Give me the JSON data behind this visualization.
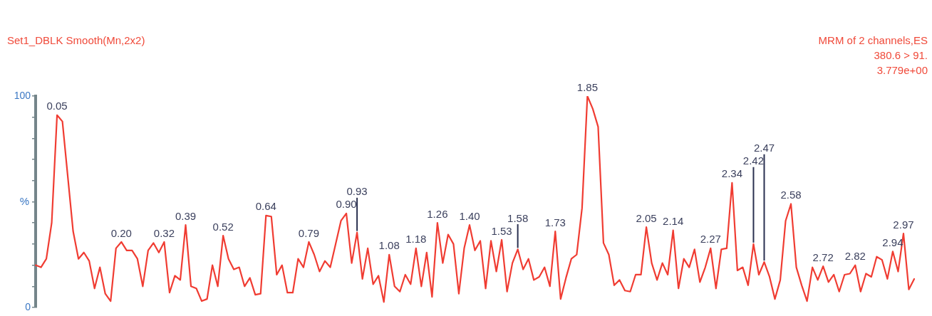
{
  "chart_data": {
    "type": "line",
    "title": "Set1_DBLK Smooth(Mn,2x2)",
    "ylabel": "%",
    "annotations": [
      "MRM of 2 channels,ES",
      "380.6 > 91.",
      "3.779e+00",
      {
        "text": "0.05",
        "y": 91
      },
      {
        "text": "0.20",
        "y": 31
      },
      {
        "text": "0.32",
        "y": 31
      },
      {
        "text": "0.39",
        "y": 39
      },
      {
        "text": "0.52",
        "y": 34
      },
      {
        "text": "0.64",
        "y": 43.5
      },
      {
        "text": "0.79",
        "y": 31
      },
      {
        "text": "0.90",
        "y": 44.5
      },
      {
        "text": "0.93",
        "y": 35.5
      },
      {
        "text": "1.08",
        "y": 25
      },
      {
        "text": "1.18",
        "y": 28
      },
      {
        "text": "1.26",
        "y": 40
      },
      {
        "text": "1.40",
        "y": 39
      },
      {
        "text": "1.53",
        "y": 32
      },
      {
        "text": "1.58",
        "y": 27.5
      },
      {
        "text": "1.73",
        "y": 36
      },
      {
        "text": "1.85",
        "y": 100
      },
      {
        "text": "2.05",
        "y": 38
      },
      {
        "text": "2.14",
        "y": 36.5
      },
      {
        "text": "2.27",
        "y": 28
      },
      {
        "text": "2.34",
        "y": 59
      },
      {
        "text": "2.42",
        "y": 30
      },
      {
        "text": "2.47",
        "y": 21.5
      },
      {
        "text": "2.58",
        "y": 49
      },
      {
        "text": "2.72",
        "y": 19.5
      },
      {
        "text": "2.82",
        "y": 20
      },
      {
        "text": "2.94",
        "y": 26.5
      },
      {
        "text": "2.97",
        "y": 35
      }
    ],
    "categories": [
      null,
      null,
      null,
      null,
      null,
      null,
      null,
      null,
      null,
      null,
      null,
      null,
      null,
      null,
      null,
      null,
      null,
      null,
      null,
      null,
      null,
      null,
      null,
      null,
      null,
      null,
      null,
      null,
      null,
      null,
      null,
      null,
      null,
      null,
      null,
      null,
      null,
      null,
      null,
      null,
      null,
      null,
      null,
      null,
      null,
      null,
      null,
      null,
      null,
      null,
      null,
      null,
      null,
      null,
      null,
      null,
      null,
      null,
      null,
      null,
      null,
      null,
      null,
      null,
      null,
      null,
      null,
      null,
      null,
      null,
      null,
      null,
      null,
      null,
      null,
      null,
      null,
      null,
      null,
      null,
      null,
      null,
      null,
      null,
      null,
      null,
      null,
      null,
      null,
      null,
      null,
      null,
      null,
      null,
      null,
      null,
      null,
      null,
      null,
      null,
      null,
      null,
      null,
      null,
      null,
      null,
      null,
      null,
      null,
      null,
      null,
      null,
      null,
      null,
      null,
      null,
      null,
      null,
      null,
      null,
      null,
      null,
      null,
      null,
      null,
      null,
      null,
      null,
      null,
      null,
      null,
      null,
      null,
      null,
      null,
      null,
      null,
      null,
      null,
      null,
      null,
      null,
      null,
      null,
      null,
      null,
      null,
      null,
      null,
      null,
      null,
      null,
      null,
      null,
      null,
      null,
      null,
      null,
      null,
      null,
      null,
      null,
      null,
      null,
      null
    ],
    "ylim": [
      0,
      100
    ],
    "yticks": [
      0,
      {
        "value": 10,
        "label": null
      },
      {
        "value": 20,
        "label": null
      },
      {
        "value": 30,
        "label": null
      },
      {
        "value": 40,
        "label": null
      },
      {
        "value": 50,
        "label": null
      },
      {
        "value": 60,
        "label": null
      },
      {
        "value": 70,
        "label": null
      },
      {
        "value": 80,
        "label": null
      },
      {
        "value": 90,
        "label": null
      },
      100
    ],
    "tick_labels": "y",
    "grid": false,
    "legend": false,
    "marker": "none",
    "line_style": "solid",
    "series": [
      {
        "color": "#f03c32",
        "values": [
          20,
          19,
          23,
          40,
          91,
          88,
          62,
          36,
          23,
          26,
          22,
          9,
          19,
          6.5,
          3,
          28,
          31,
          27,
          27,
          23,
          10,
          27,
          30.5,
          26,
          31,
          7,
          15,
          13,
          39,
          10,
          9,
          3,
          4,
          20,
          10,
          34,
          23,
          18,
          19,
          10,
          14,
          6,
          6.5,
          43.5,
          43,
          15.5,
          20,
          7,
          7,
          23,
          19,
          31,
          25,
          17,
          22,
          19,
          30,
          41,
          44.5,
          21,
          35.5,
          13.5,
          28,
          11,
          15,
          2.6,
          25,
          10,
          7.5,
          15.5,
          11,
          28,
          10,
          26,
          5,
          40,
          21,
          34.5,
          30,
          6.5,
          28,
          39,
          27,
          31.5,
          9,
          31.5,
          17,
          32,
          7.5,
          21,
          27.5,
          18,
          23,
          13,
          14.5,
          19,
          10,
          36,
          4,
          14,
          23,
          25,
          47,
          100,
          94,
          85.5,
          30.5,
          25,
          10.5,
          13,
          8,
          7.5,
          15.5,
          15.5,
          38,
          21,
          13,
          21,
          15.5,
          36.5,
          9,
          23,
          19,
          27.5,
          12,
          19,
          28,
          9,
          27.5,
          28,
          59,
          17.5,
          19,
          10.5,
          30,
          15.5,
          21.5,
          14.5,
          4,
          13,
          41,
          49,
          19,
          10.5,
          3,
          19,
          13,
          19.5,
          12,
          15.5,
          7.5,
          15.5,
          16,
          20,
          7.5,
          16,
          14.5,
          24,
          22.5,
          13.5,
          26.5,
          17,
          35,
          8.5,
          13.5
        ]
      }
    ]
  }
}
